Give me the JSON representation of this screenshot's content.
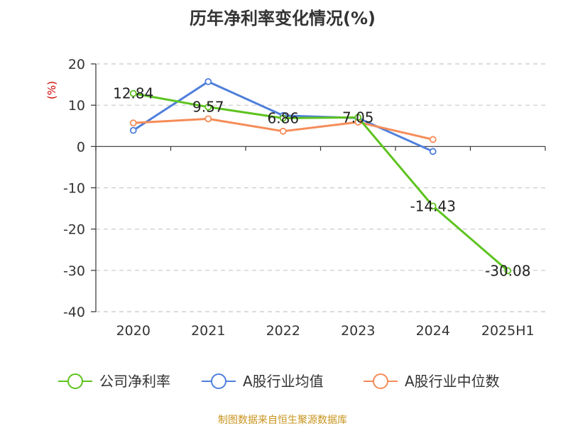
{
  "chart_data": {
    "type": "line",
    "title": "历年净利率变化情况(%)",
    "ylabel": "(%)",
    "xlabel": "",
    "categories": [
      "2020",
      "2021",
      "2022",
      "2023",
      "2024",
      "2025H1"
    ],
    "ylim": [
      -40,
      20
    ],
    "yticks": [
      20,
      10,
      0,
      -10,
      -20,
      -30,
      -40
    ],
    "grid": true,
    "legend_position": "bottom",
    "series": [
      {
        "name": "公司净利率",
        "color": "#5dc31f",
        "values": [
          12.84,
          9.57,
          6.86,
          7.05,
          -14.43,
          -30.08
        ],
        "labels": [
          "12.84",
          "9.57",
          "6.86",
          "7.05",
          "-14.43",
          "-30.08"
        ]
      },
      {
        "name": "A股行业均值",
        "color": "#4f7fdb",
        "values": [
          3.9,
          15.7,
          7.5,
          6.9,
          -1.2,
          null
        ]
      },
      {
        "name": "A股行业中位数",
        "color": "#f58c58",
        "values": [
          5.7,
          6.7,
          3.7,
          5.9,
          1.7,
          null
        ]
      }
    ]
  },
  "source_text": "制图数据来自恒生聚源数据库"
}
